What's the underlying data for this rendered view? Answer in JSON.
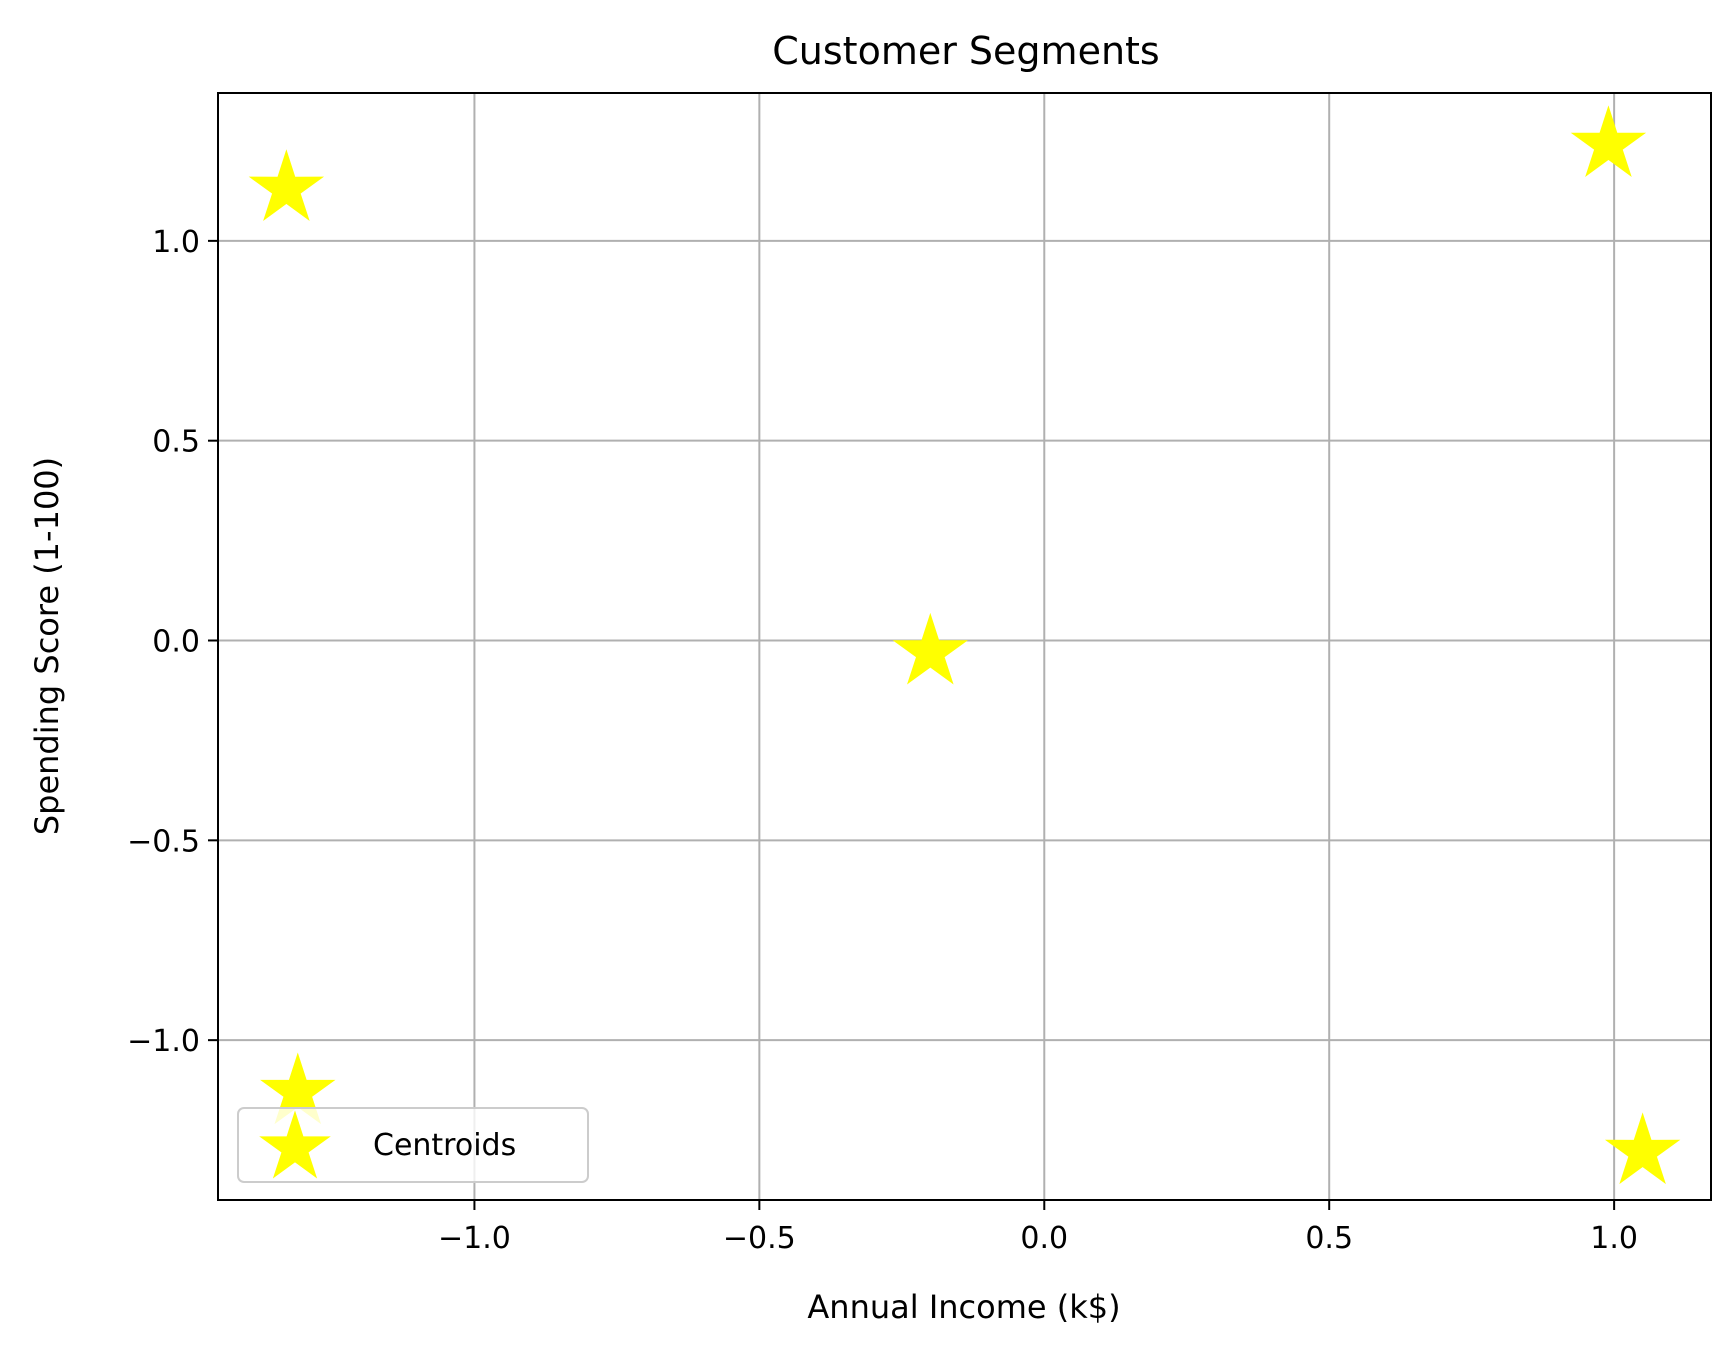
{
  "chart_data": {
    "type": "scatter",
    "title": "Customer Segments",
    "xlabel": "Annual Income (k$)",
    "ylabel": "Spending Score (1-100)",
    "xlim": [
      -1.45,
      1.17
    ],
    "ylim": [
      -1.4,
      1.37
    ],
    "xticks": [
      -1.0,
      -0.5,
      0.0,
      0.5,
      1.0
    ],
    "xtick_labels": [
      "−1.0",
      "−0.5",
      "0.0",
      "0.5",
      "1.0"
    ],
    "yticks": [
      -1.0,
      -0.5,
      0.0,
      0.5,
      1.0
    ],
    "ytick_labels": [
      "−1.0",
      "−0.5",
      "0.0",
      "0.5",
      "1.0"
    ],
    "grid": true,
    "legend": {
      "placement": "lower-left",
      "entries": [
        "Centroids"
      ]
    },
    "series": [
      {
        "name": "Centroids",
        "marker": "star",
        "color": "#ffff00",
        "points": [
          {
            "x": -1.33,
            "y": 1.13
          },
          {
            "x": 0.99,
            "y": 1.24
          },
          {
            "x": -0.2,
            "y": -0.03
          },
          {
            "x": -1.31,
            "y": -1.13
          },
          {
            "x": 1.05,
            "y": -1.28
          }
        ]
      }
    ]
  }
}
